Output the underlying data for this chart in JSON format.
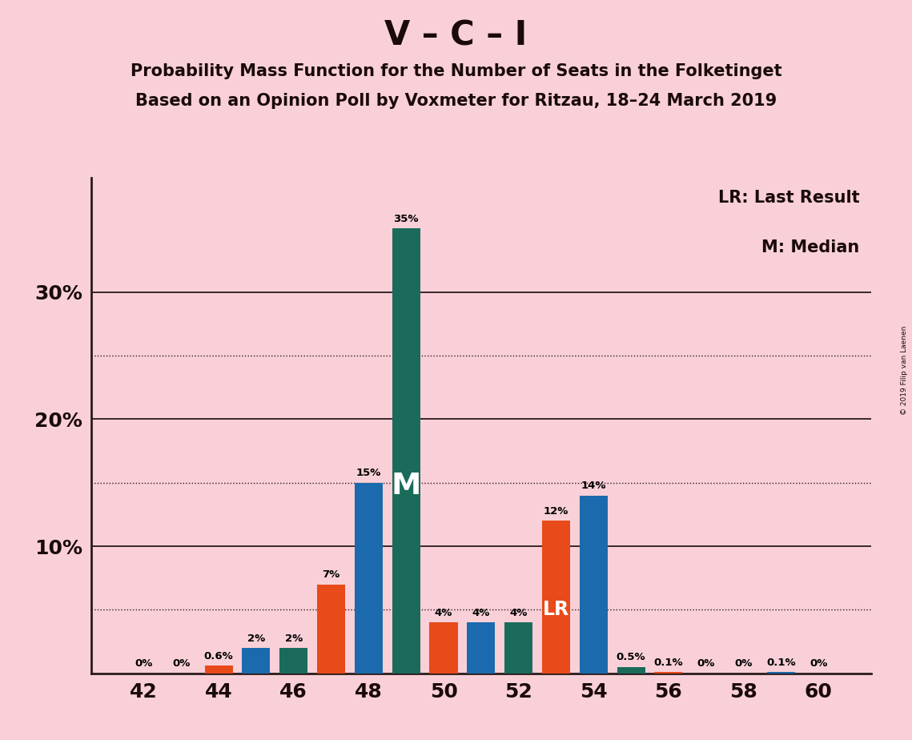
{
  "title": "V – C – I",
  "subtitle1": "Probability Mass Function for the Number of Seats in the Folketinget",
  "subtitle2": "Based on an Opinion Poll by Voxmeter for Ritzau, 18–24 March 2019",
  "watermark": "© 2019 Filip van Laenen",
  "legend_lr": "LR: Last Result",
  "legend_m": "M: Median",
  "background_color": "#f9d0d8",
  "bar_color_orange": "#e84a1a",
  "bar_color_blue": "#1b6aad",
  "bar_color_teal": "#1a6b5a",
  "bar_data": [
    [
      42,
      "orange",
      0,
      "0%",
      false,
      false
    ],
    [
      43,
      "blue",
      0,
      "0%",
      false,
      false
    ],
    [
      44,
      "orange",
      0.6,
      "0.6%",
      false,
      false
    ],
    [
      45,
      "blue",
      2,
      "2%",
      false,
      false
    ],
    [
      46,
      "teal",
      2,
      "2%",
      false,
      false
    ],
    [
      47,
      "orange",
      7,
      "7%",
      false,
      false
    ],
    [
      48,
      "blue",
      15,
      "15%",
      false,
      false
    ],
    [
      49,
      "teal",
      35,
      "35%",
      false,
      true
    ],
    [
      50,
      "orange",
      4,
      "4%",
      false,
      false
    ],
    [
      51,
      "blue",
      4,
      "4%",
      false,
      false
    ],
    [
      52,
      "teal",
      4,
      "4%",
      false,
      false
    ],
    [
      53,
      "orange",
      12,
      "12%",
      true,
      false
    ],
    [
      54,
      "blue",
      14,
      "14%",
      false,
      false
    ],
    [
      55,
      "teal",
      0.5,
      "0.5%",
      false,
      false
    ],
    [
      56,
      "orange",
      0.1,
      "0.1%",
      false,
      false
    ],
    [
      57,
      "blue",
      0,
      "0%",
      false,
      false
    ],
    [
      58,
      "orange",
      0,
      "0%",
      false,
      false
    ],
    [
      59,
      "blue",
      0.1,
      "0.1%",
      false,
      false
    ],
    [
      60,
      "teal",
      0,
      "0%",
      false,
      false
    ]
  ],
  "solid_yticks": [
    10,
    20,
    30
  ],
  "dotted_yticks": [
    5,
    15,
    25
  ],
  "xticks": [
    42,
    44,
    46,
    48,
    50,
    52,
    54,
    56,
    58,
    60
  ],
  "ytick_vals": [
    10,
    20,
    30
  ],
  "ytick_labels": [
    "10%",
    "20%",
    "30%"
  ],
  "xlim": [
    40.6,
    61.4
  ],
  "ylim": [
    0,
    39
  ],
  "bar_width": 0.75
}
